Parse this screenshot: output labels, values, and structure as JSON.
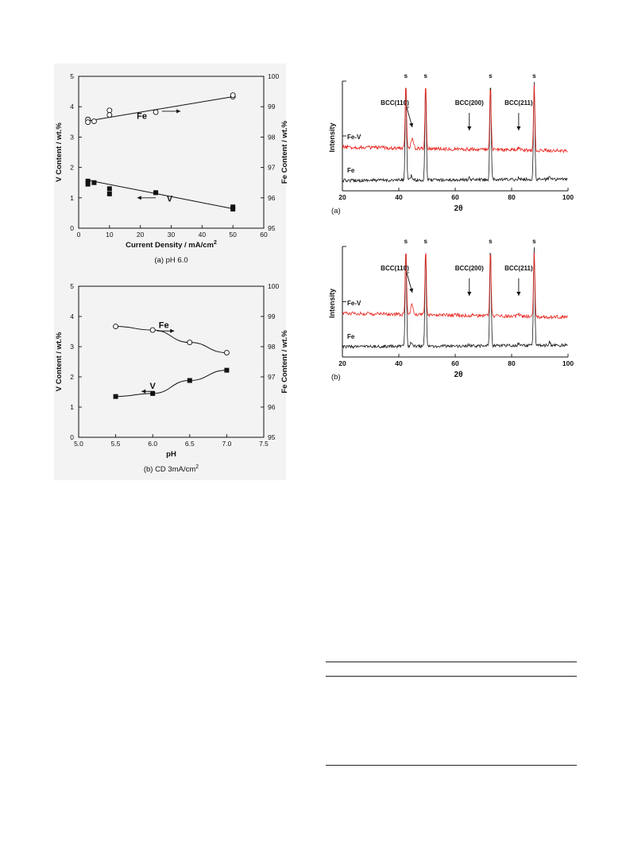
{
  "chart_data": [
    {
      "id": "a",
      "type": "scatter",
      "caption": "(a) pH 6.0",
      "xlabel": "Current Density / mA/cm",
      "xlabel_sup": "2",
      "ylabel": "V  Content / wt.%",
      "y2label": "Fe  Content / wt.%",
      "xlim": [
        0,
        60
      ],
      "ylim": [
        0,
        5
      ],
      "y2lim": [
        95,
        100
      ],
      "xticks": [
        "0",
        "10",
        "20",
        "30",
        "40",
        "50",
        "60"
      ],
      "yticks": [
        "0",
        "1",
        "2",
        "3",
        "4",
        "5"
      ],
      "y2ticks": [
        "95",
        "96",
        "97",
        "98",
        "99",
        "100"
      ],
      "series": [
        {
          "name": "Fe",
          "axis": "right",
          "marker": "open-circle",
          "arrow": "right",
          "x": [
            3,
            3,
            5,
            10,
            10,
            25,
            50,
            50
          ],
          "y": [
            98.58,
            98.49,
            98.52,
            98.88,
            98.73,
            98.82,
            99.33,
            99.38
          ],
          "fit": [
            [
              3,
              98.53
            ],
            [
              50,
              99.33
            ]
          ]
        },
        {
          "name": "V",
          "axis": "left",
          "marker": "filled-square",
          "arrow": "left",
          "x": [
            3,
            3,
            5,
            10,
            10,
            25,
            50,
            50
          ],
          "y": [
            1.55,
            1.45,
            1.5,
            1.3,
            1.13,
            1.17,
            0.7,
            0.63
          ],
          "fit": [
            [
              3,
              1.58
            ],
            [
              50,
              0.64
            ]
          ]
        }
      ]
    },
    {
      "id": "b",
      "type": "line",
      "caption": "(b) CD 3mA/cm",
      "caption_sup": "2",
      "xlabel": "pH",
      "ylabel": "V  Content / wt.%",
      "y2label": "Fe  Content / wt.%",
      "xlim": [
        5.0,
        7.5
      ],
      "ylim": [
        0,
        5
      ],
      "y2lim": [
        95,
        100
      ],
      "xticks": [
        "5.0",
        "5.5",
        "6.0",
        "6.5",
        "7.0",
        "7.5"
      ],
      "yticks": [
        "0",
        "1",
        "2",
        "3",
        "4",
        "5"
      ],
      "y2ticks": [
        "95",
        "96",
        "97",
        "98",
        "99",
        "100"
      ],
      "series": [
        {
          "name": "Fe",
          "axis": "right",
          "marker": "open-circle",
          "arrow": "right",
          "x": [
            5.5,
            6.0,
            6.5,
            7.0
          ],
          "y": [
            98.67,
            98.55,
            98.14,
            97.8
          ]
        },
        {
          "name": "V",
          "axis": "left",
          "marker": "filled-square",
          "arrow": "left",
          "x": [
            5.5,
            6.0,
            6.5,
            7.0
          ],
          "y": [
            1.35,
            1.45,
            1.88,
            2.22
          ]
        }
      ]
    },
    {
      "id": "c",
      "type": "line",
      "caption": "(a)",
      "xlabel": "2θ",
      "ylabel": "Intensity",
      "xlim": [
        20,
        100
      ],
      "xticks": [
        "20",
        "40",
        "60",
        "80",
        "100"
      ],
      "grid": false,
      "series": [
        {
          "name": "Fe-V",
          "color": "#e8231c"
        },
        {
          "name": "Fe",
          "color": "#1a1a1a"
        }
      ],
      "substrate_peaks": {
        "label": "s",
        "x": [
          42.5,
          49.5,
          72.5,
          88
        ]
      },
      "annotations": [
        {
          "text": "BCC(110)",
          "x": 44.5
        },
        {
          "text": "BCC(200)",
          "x": 65
        },
        {
          "text": "BCC(211)",
          "x": 82.5
        }
      ]
    },
    {
      "id": "d",
      "type": "line",
      "caption": "(b)",
      "xlabel": "2θ",
      "ylabel": "Intensity",
      "xlim": [
        20,
        100
      ],
      "xticks": [
        "20",
        "40",
        "60",
        "80",
        "100"
      ],
      "grid": false,
      "series": [
        {
          "name": "Fe-V",
          "color": "#e8231c"
        },
        {
          "name": "Fe",
          "color": "#1a1a1a"
        }
      ],
      "substrate_peaks": {
        "label": "s",
        "x": [
          42.5,
          49.5,
          72.5,
          88
        ]
      },
      "annotations": [
        {
          "text": "BCC(110)",
          "x": 44.5
        },
        {
          "text": "BCC(200)",
          "x": 65
        },
        {
          "text": "BCC(211)",
          "x": 82.5
        }
      ]
    }
  ]
}
